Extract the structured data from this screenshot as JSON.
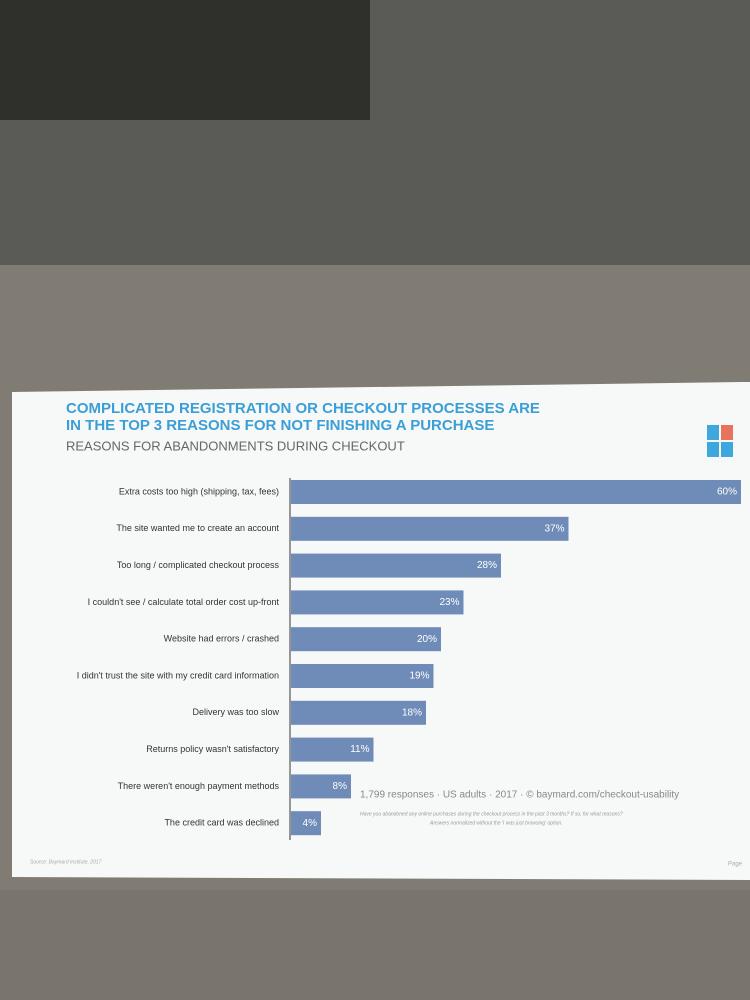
{
  "chart_data": {
    "type": "bar",
    "title": [
      "COMPLICATED REGISTRATION OR CHECKOUT PROCESSES ARE",
      "IN THE TOP 3 REASONS FOR NOT FINISHING A PURCHASE"
    ],
    "subtitle": "REASONS FOR ABANDONMENTS DURING CHECKOUT",
    "categories": [
      "Extra costs too high (shipping, tax, fees)",
      "The site wanted me to create an account",
      "Too long / complicated checkout process",
      "I couldn't see / calculate total order cost up-front",
      "Website had errors / crashed",
      "I didn't trust the site with my credit card information",
      "Delivery was too slow",
      "Returns policy wasn't satisfactory",
      "There weren't enough payment methods",
      "The credit card was declined"
    ],
    "values": [
      60,
      37,
      28,
      23,
      20,
      19,
      18,
      11,
      8,
      4
    ],
    "value_labels": [
      "60%",
      "37%",
      "28%",
      "23%",
      "20%",
      "19%",
      "18%",
      "11%",
      "8%",
      "4%"
    ],
    "color": "#6f8cb8",
    "annotations": [
      "1,799 responses · US adults · 2017 · © baymard.com/checkout-usability",
      "Have you abandoned any online purchases during the checkout process in the past 3 months? If so, for what reasons?",
      "Answers normalized without the 'I was just browsing' option."
    ],
    "source": "Source: Baymard Institute, 2017",
    "page": "Page"
  }
}
